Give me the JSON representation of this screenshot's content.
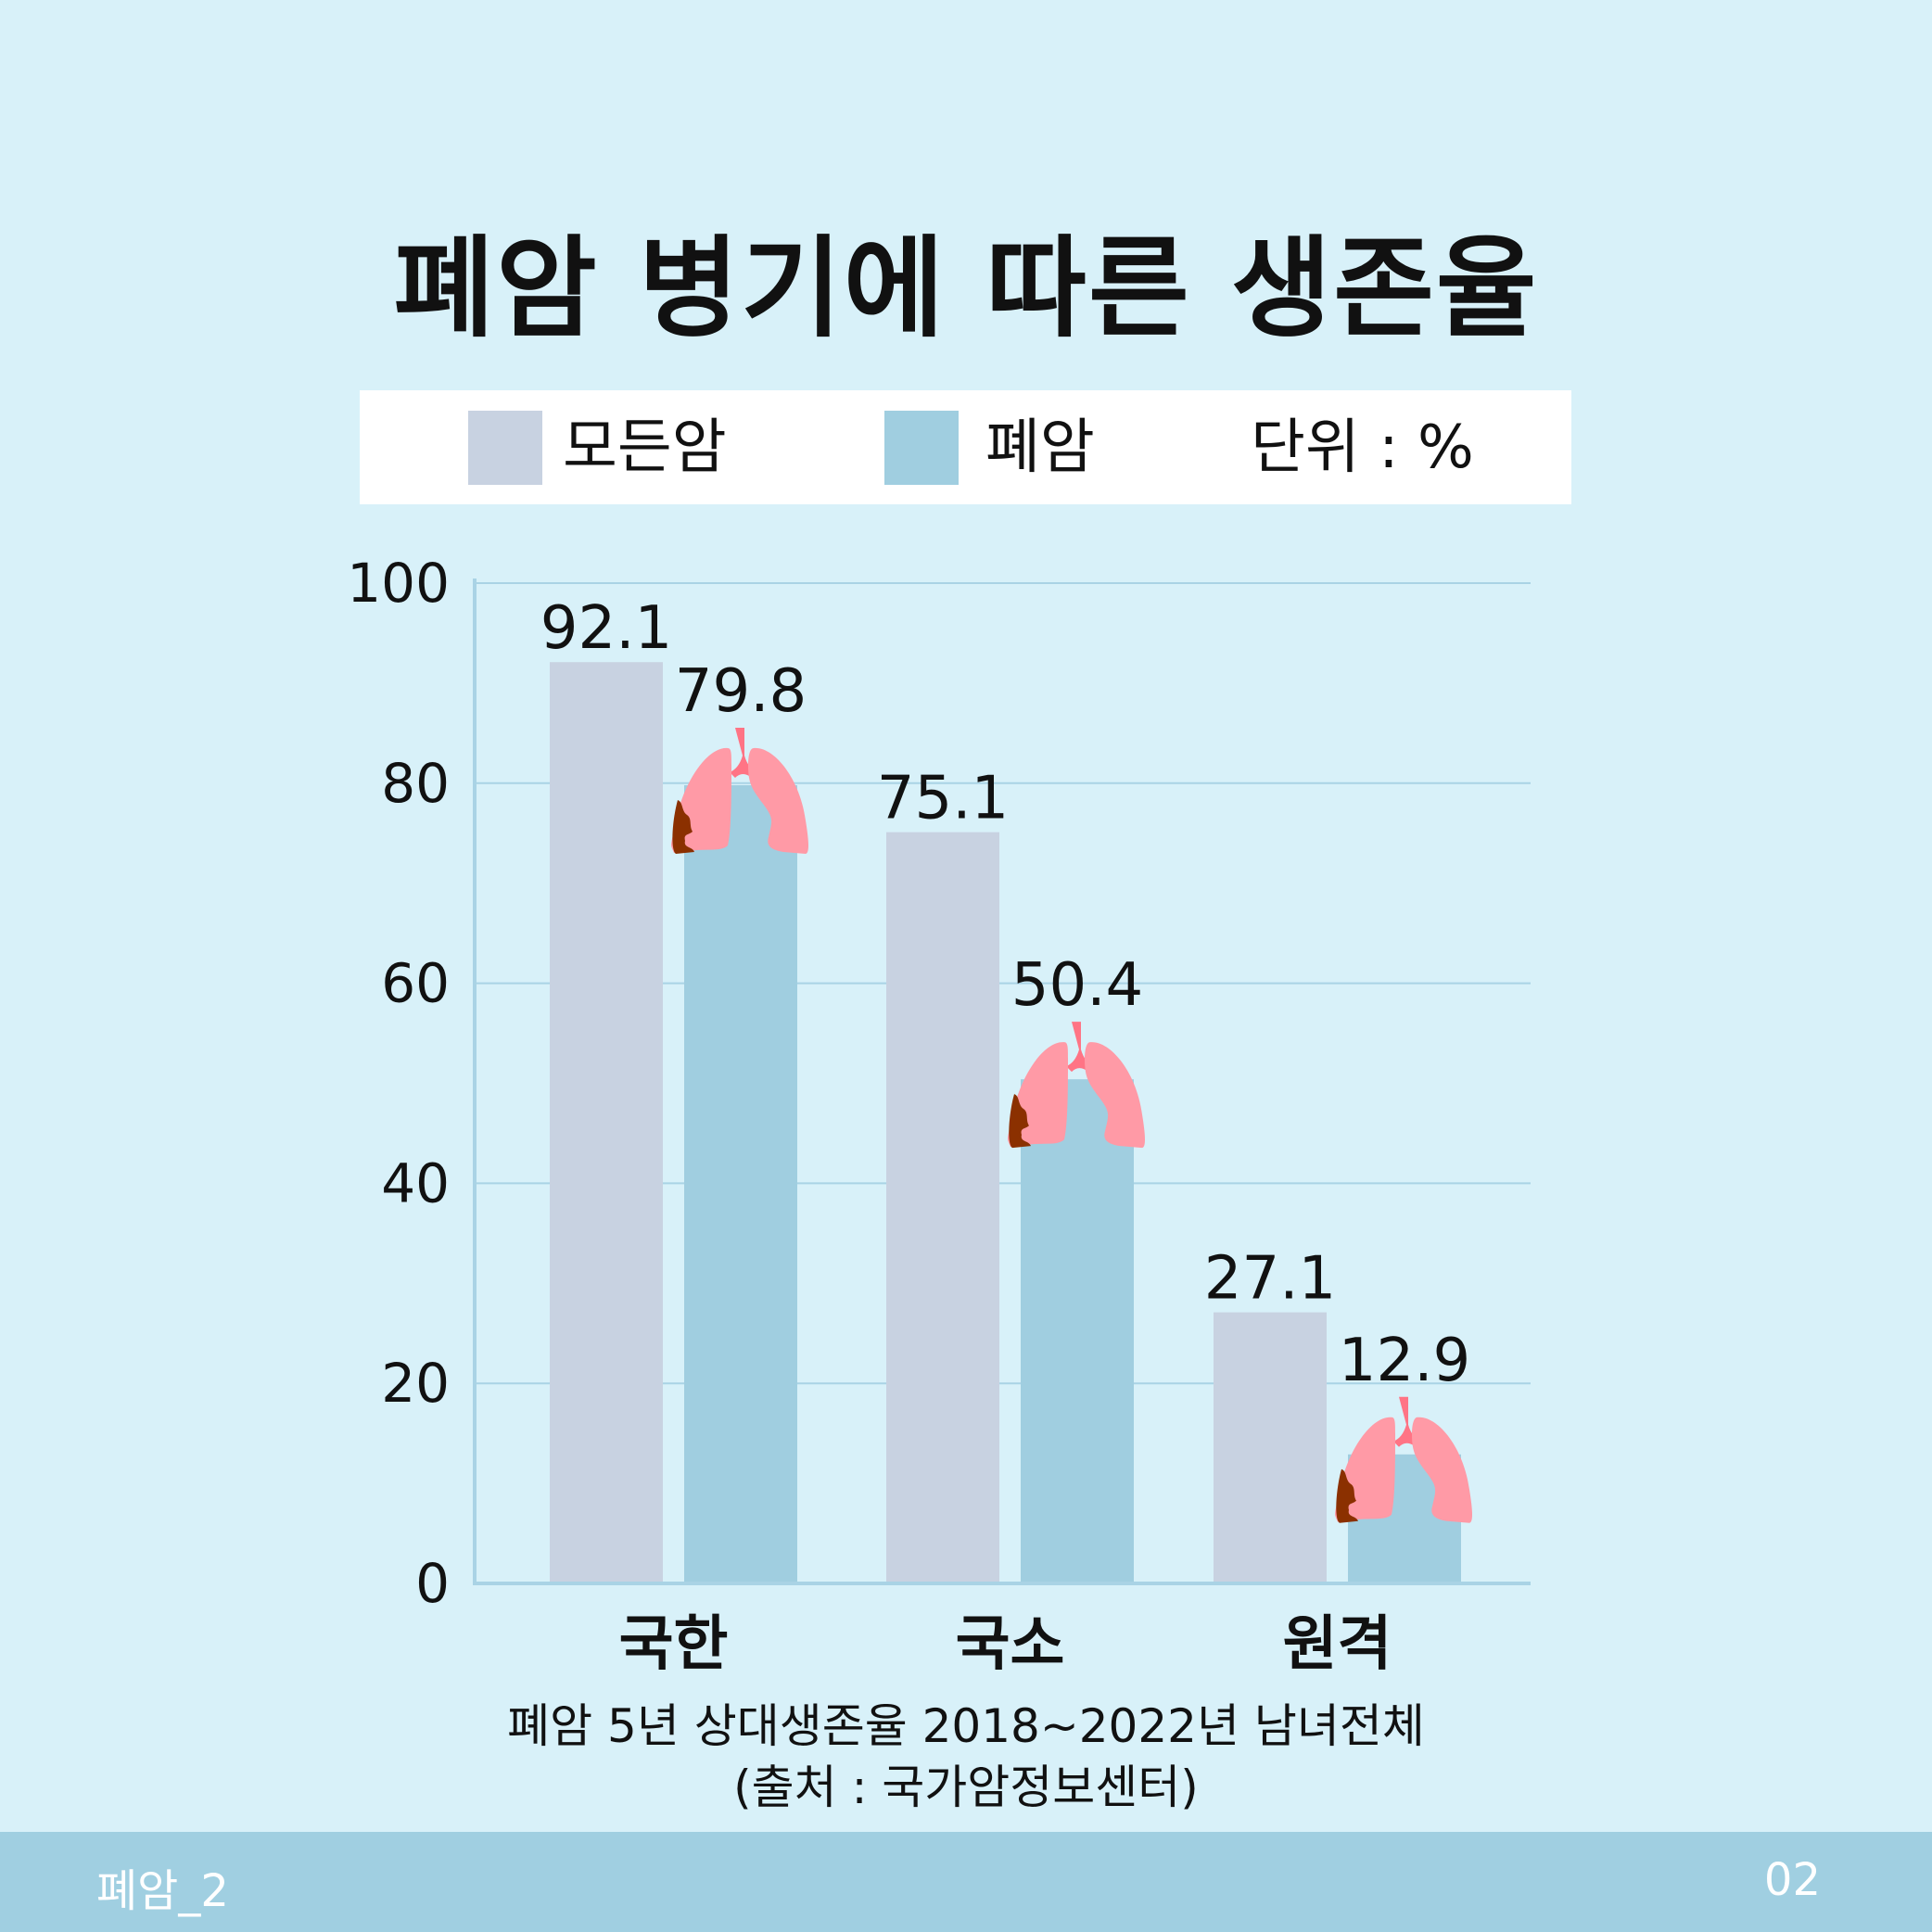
{
  "title": "폐암 병기에 따른 생존율",
  "legend": {
    "all_cancer": "모든암",
    "lung_cancer": "폐암",
    "unit": "단위 : %"
  },
  "colors": {
    "background": "#d8f1f9",
    "all_cancer": "#c8d2e1",
    "lung_cancer": "#a0cee0",
    "grid": "#a9d3e5",
    "footer": "#a0cfe1",
    "lung_icon": "#ff9aa6",
    "trachea": "#ff7485",
    "tumor": "#8b3000"
  },
  "chart_data": {
    "type": "bar",
    "categories": [
      "국한",
      "국소",
      "원격"
    ],
    "series": [
      {
        "name": "모든암",
        "values": [
          92.1,
          75.1,
          27.1
        ]
      },
      {
        "name": "폐암",
        "values": [
          79.8,
          50.4,
          12.9
        ]
      }
    ],
    "ylim": [
      0,
      100
    ],
    "yticks": [
      0,
      20,
      40,
      60,
      80,
      100
    ],
    "grid": true,
    "legend_position": "top",
    "icon_on_lung_bars": "lungs-icon"
  },
  "note": {
    "line1": "폐암 5년 상대생존율 2018~2022년 남녀전체",
    "line2": "(출처 : 국가암정보센터)"
  },
  "footer": {
    "left": "폐암_2",
    "right": "02"
  }
}
